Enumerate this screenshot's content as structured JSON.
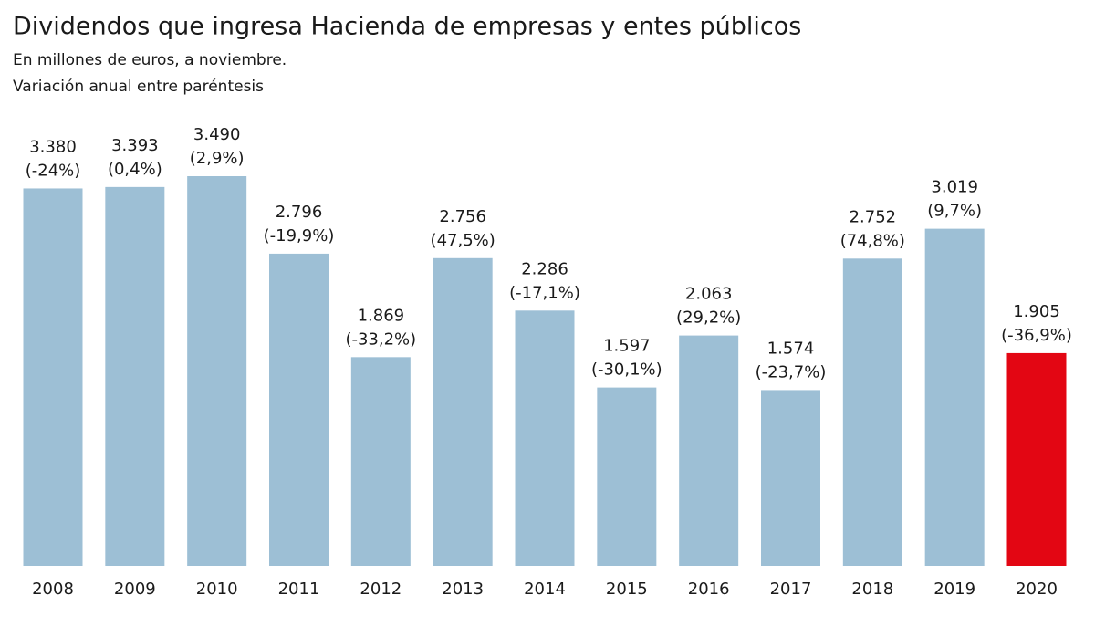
{
  "chart_data": {
    "type": "bar",
    "title": "Dividendos que ingresa Hacienda de empresas y entes públicos",
    "subtitle": "En millones de euros, a noviembre.",
    "note": "Variación anual entre paréntesis",
    "categories": [
      "2008",
      "2009",
      "2010",
      "2011",
      "2012",
      "2013",
      "2014",
      "2015",
      "2016",
      "2017",
      "2018",
      "2019",
      "2020"
    ],
    "values": [
      3380,
      3393,
      3490,
      2796,
      1869,
      2756,
      2286,
      1597,
      2063,
      1574,
      2752,
      3019,
      1905
    ],
    "value_labels": [
      "3.380",
      "3.393",
      "3.490",
      "2.796",
      "1.869",
      "2.756",
      "2.286",
      "1.597",
      "2.063",
      "1.574",
      "2.752",
      "3.019",
      "1.905"
    ],
    "changes": [
      -24,
      0.4,
      2.9,
      -19.9,
      -33.2,
      47.5,
      -17.1,
      -30.1,
      29.2,
      -23.7,
      74.8,
      9.7,
      -36.9
    ],
    "change_labels": [
      "(-24%)",
      "(0,4%)",
      "(2,9%)",
      "(-19,9%)",
      "(-33,2%)",
      "(47,5%)",
      "(-17,1%)",
      "(-30,1%)",
      "(29,2%)",
      "(-23,7%)",
      "(74,8%)",
      "(9,7%)",
      "(-36,9%)"
    ],
    "colors": [
      "#9dbfd5",
      "#9dbfd5",
      "#9dbfd5",
      "#9dbfd5",
      "#9dbfd5",
      "#9dbfd5",
      "#9dbfd5",
      "#9dbfd5",
      "#9dbfd5",
      "#9dbfd5",
      "#9dbfd5",
      "#9dbfd5",
      "#e30613"
    ]
  }
}
